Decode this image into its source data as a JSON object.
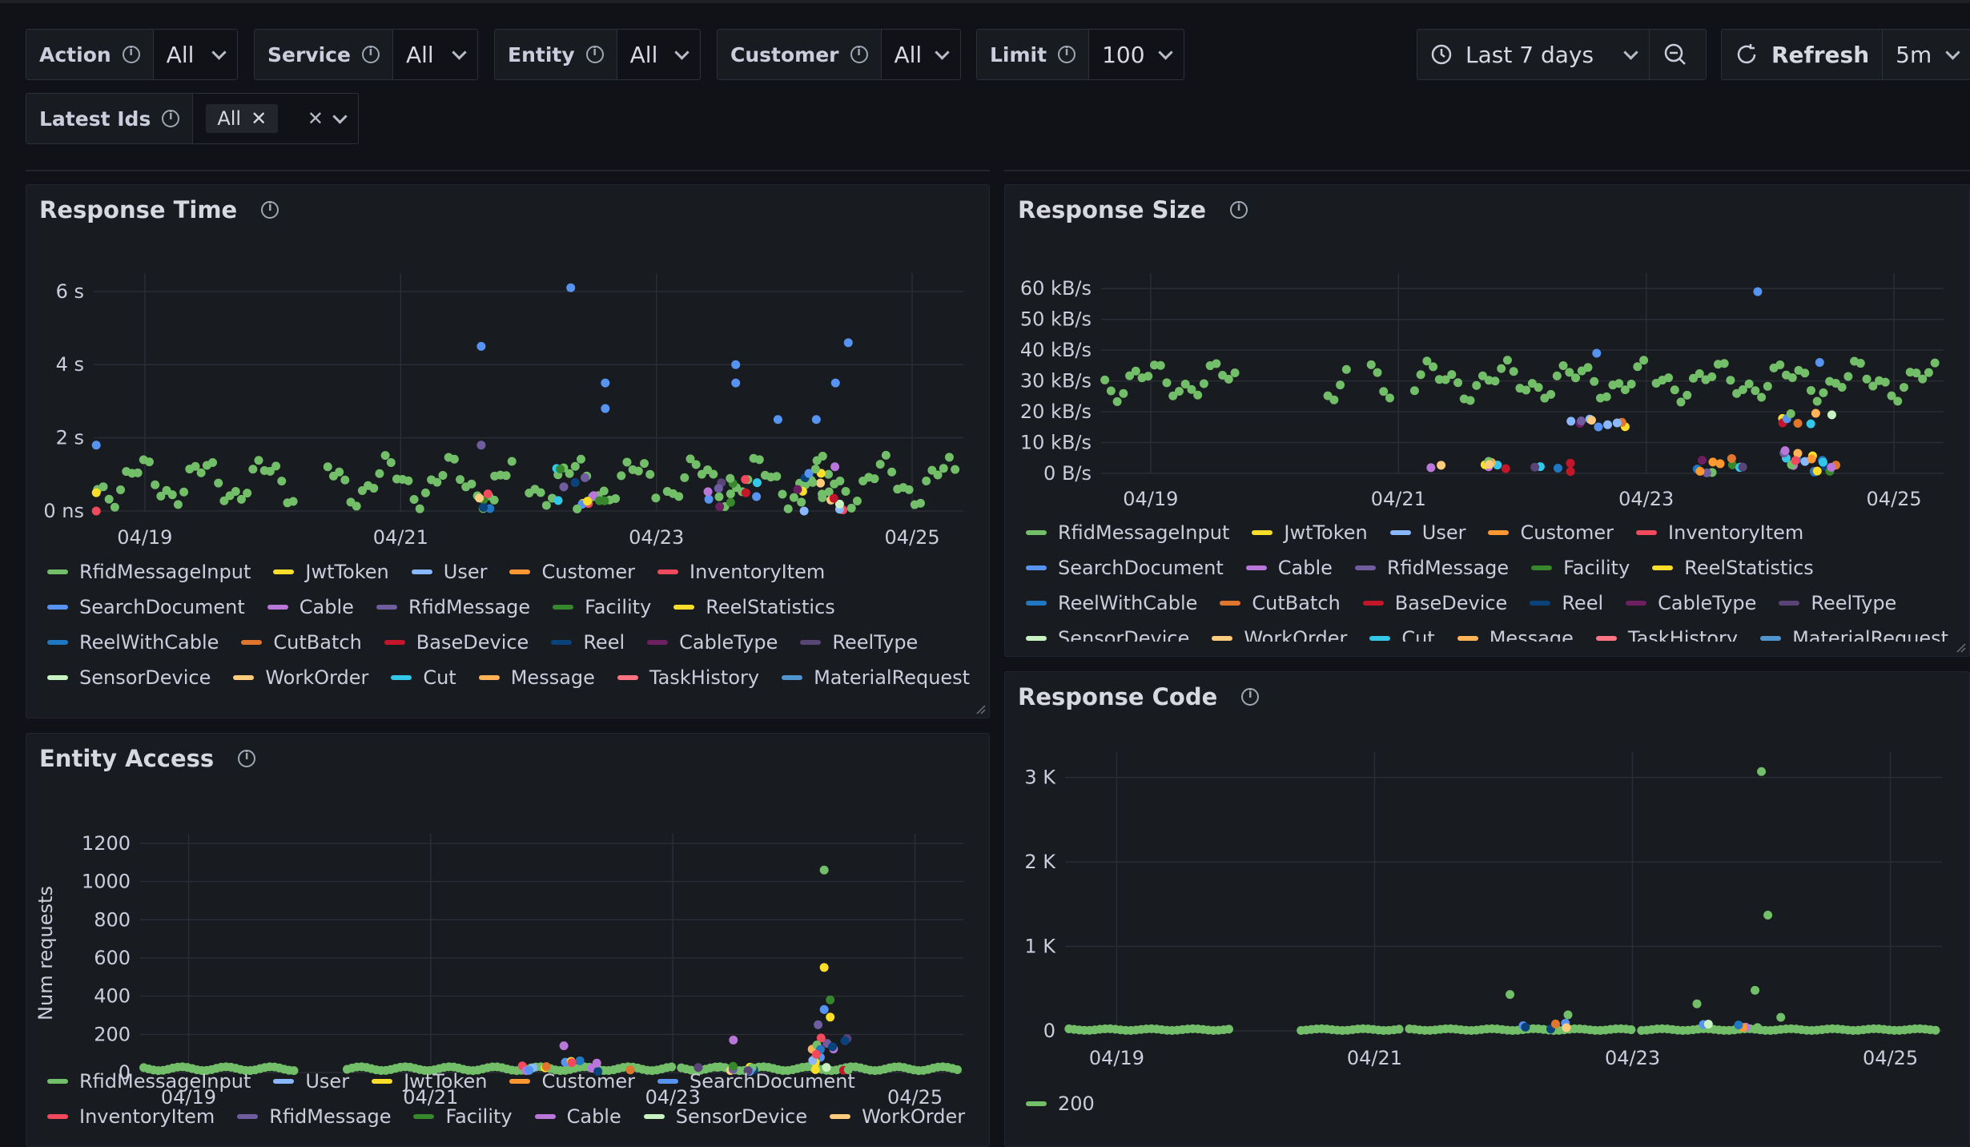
{
  "variables": [
    {
      "label": "Action",
      "value": "All"
    },
    {
      "label": "Service",
      "value": "All"
    },
    {
      "label": "Entity",
      "value": "All"
    },
    {
      "label": "Customer",
      "value": "All"
    },
    {
      "label": "Limit",
      "value": "100"
    }
  ],
  "latest_ids": {
    "label": "Latest Ids",
    "chip": "All"
  },
  "time_picker": {
    "label": "Last 7 days"
  },
  "refresh": {
    "label": "Refresh",
    "interval": "5m"
  },
  "colors": {
    "bg": "#111217",
    "panel": "#181b1f",
    "grid": "#2a2d35",
    "text": "#ccccdc"
  },
  "series_colors": {
    "RfidMessageInput": "#73bf69",
    "JwtToken": "#fade2a",
    "User": "#8ab8ff",
    "Customer": "#ff9830",
    "InventoryItem": "#f2495c",
    "SearchDocument": "#5794f2",
    "Cable": "#b877d9",
    "RfidMessage": "#705da0",
    "Facility": "#37872d",
    "ReelStatistics": "#fade2a",
    "ReelWithCable": "#1f78c1",
    "CutBatch": "#e0752d",
    "BaseDevice": "#c4162a",
    "Reel": "#0a437c",
    "CableType": "#6d1f62",
    "ReelType": "#584477",
    "SensorDevice": "#c8f2c2",
    "WorkOrder": "#ffcb7d",
    "Cut": "#33c7e8",
    "Message": "#ffb357",
    "TaskHistory": "#ff7383",
    "MaterialRequest": "#5195ce",
    "200": "#73bf69"
  },
  "panels": {
    "response_time": {
      "title": "Response Time",
      "legend": [
        "RfidMessageInput",
        "JwtToken",
        "User",
        "Customer",
        "InventoryItem",
        "SearchDocument",
        "Cable",
        "RfidMessage",
        "Facility",
        "ReelStatistics",
        "ReelWithCable",
        "CutBatch",
        "BaseDevice",
        "Reel",
        "CableType",
        "ReelType",
        "SensorDevice",
        "WorkOrder",
        "Cut",
        "Message",
        "TaskHistory",
        "MaterialRequest"
      ],
      "chart_data": {
        "type": "scatter",
        "x_ticks": [
          "04/19",
          "04/21",
          "04/23",
          "04/25"
        ],
        "y_ticks": [
          "0 ns",
          "2 s",
          "4 s",
          "6 s"
        ],
        "ylim_seconds": [
          0,
          6.5
        ],
        "xlim_days": [
          18.6,
          25.4
        ],
        "baseline_series": "RfidMessageInput",
        "baseline_seconds": 1.0,
        "outliers": [
          {
            "series": "SearchDocument",
            "x": 18.62,
            "y": 1.8
          },
          {
            "series": "SearchDocument",
            "x": 21.63,
            "y": 4.5
          },
          {
            "series": "SearchDocument",
            "x": 22.33,
            "y": 6.1
          },
          {
            "series": "SearchDocument",
            "x": 22.6,
            "y": 3.5
          },
          {
            "series": "SearchDocument",
            "x": 22.6,
            "y": 2.8
          },
          {
            "series": "SearchDocument",
            "x": 23.62,
            "y": 4.0
          },
          {
            "series": "SearchDocument",
            "x": 23.62,
            "y": 3.5
          },
          {
            "series": "SearchDocument",
            "x": 23.95,
            "y": 2.5
          },
          {
            "series": "SearchDocument",
            "x": 24.25,
            "y": 2.5
          },
          {
            "series": "SearchDocument",
            "x": 24.4,
            "y": 3.5
          },
          {
            "series": "SearchDocument",
            "x": 24.5,
            "y": 4.6
          },
          {
            "series": "RfidMessage",
            "x": 21.63,
            "y": 1.8
          },
          {
            "series": "InventoryItem",
            "x": 18.62,
            "y": 0.0
          },
          {
            "series": "JwtToken",
            "x": 18.62,
            "y": 0.5
          }
        ]
      }
    },
    "response_size": {
      "title": "Response Size",
      "legend": [
        "RfidMessageInput",
        "JwtToken",
        "User",
        "Customer",
        "InventoryItem",
        "SearchDocument",
        "Cable",
        "RfidMessage",
        "Facility",
        "ReelStatistics",
        "ReelWithCable",
        "CutBatch",
        "BaseDevice",
        "Reel",
        "CableType",
        "ReelType",
        "SensorDevice",
        "WorkOrder",
        "Cut",
        "Message",
        "TaskHistory",
        "MaterialRequest"
      ],
      "chart_data": {
        "type": "scatter",
        "x_ticks": [
          "04/19",
          "04/21",
          "04/23",
          "04/25"
        ],
        "y_ticks": [
          "0 B/s",
          "10 kB/s",
          "20 kB/s",
          "30 kB/s",
          "40 kB/s",
          "50 kB/s",
          "60 kB/s"
        ],
        "ylim_kbs": [
          0,
          65
        ],
        "xlim_days": [
          18.6,
          25.4
        ],
        "baseline_series": "RfidMessageInput",
        "outliers": [
          {
            "series": "SearchDocument",
            "x": 23.9,
            "y": 59
          },
          {
            "series": "SearchDocument",
            "x": 22.6,
            "y": 39
          },
          {
            "series": "SearchDocument",
            "x": 24.4,
            "y": 36
          }
        ]
      }
    },
    "entity_access": {
      "title": "Entity Access",
      "legend": [
        "RfidMessageInput",
        "User",
        "JwtToken",
        "Customer",
        "SearchDocument",
        "InventoryItem",
        "RfidMessage",
        "Facility",
        "Cable",
        "SensorDevice",
        "WorkOrder"
      ],
      "chart_data": {
        "type": "scatter",
        "ylabel": "Num requests",
        "x_ticks": [
          "04/19",
          "04/21",
          "04/23",
          "04/25"
        ],
        "y_ticks": [
          "0",
          "200",
          "400",
          "600",
          "800",
          "1000",
          "1200"
        ],
        "ylim": [
          0,
          1250
        ],
        "xlim_days": [
          18.6,
          25.4
        ],
        "outliers": [
          {
            "series": "RfidMessageInput",
            "x": 24.25,
            "y": 1060
          },
          {
            "series": "JwtToken",
            "x": 24.25,
            "y": 550
          },
          {
            "series": "Facility",
            "x": 24.3,
            "y": 380
          },
          {
            "series": "SearchDocument",
            "x": 24.25,
            "y": 330
          },
          {
            "series": "JwtToken",
            "x": 24.3,
            "y": 290
          },
          {
            "series": "RfidMessage",
            "x": 24.2,
            "y": 250
          },
          {
            "series": "Cable",
            "x": 23.5,
            "y": 170
          },
          {
            "series": "Cable",
            "x": 22.1,
            "y": 140
          }
        ]
      }
    },
    "response_code": {
      "title": "Response Code",
      "legend": [
        "200"
      ],
      "chart_data": {
        "type": "scatter",
        "x_ticks": [
          "04/19",
          "04/21",
          "04/23",
          "04/25"
        ],
        "y_ticks": [
          "0",
          "1 K",
          "2 K",
          "3 K"
        ],
        "ylim": [
          0,
          3300
        ],
        "xlim_days": [
          18.6,
          25.4
        ],
        "series": [
          {
            "name": "200",
            "outliers": [
              {
                "x": 24.0,
                "y": 3070
              },
              {
                "x": 24.05,
                "y": 1370
              },
              {
                "x": 23.95,
                "y": 480
              },
              {
                "x": 22.05,
                "y": 430
              },
              {
                "x": 23.5,
                "y": 320
              },
              {
                "x": 22.5,
                "y": 190
              },
              {
                "x": 24.15,
                "y": 160
              }
            ]
          }
        ]
      }
    }
  }
}
